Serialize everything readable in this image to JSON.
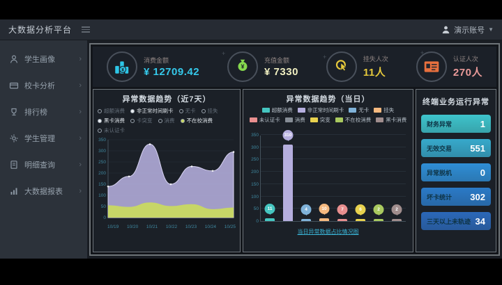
{
  "header": {
    "title": "大数据分析平台",
    "user_name": "演示账号"
  },
  "sidebar": {
    "items": [
      {
        "label": "学生画像",
        "icon": "student-icon"
      },
      {
        "label": "校卡分析",
        "icon": "card-icon"
      },
      {
        "label": "排行榜",
        "icon": "ranking-icon"
      },
      {
        "label": "学生管理",
        "icon": "manage-icon"
      },
      {
        "label": "明细查询",
        "icon": "query-icon"
      },
      {
        "label": "大数据报表",
        "icon": "report-icon"
      }
    ]
  },
  "kpis": [
    {
      "label": "消费金额",
      "value": "¥ 12709.42",
      "icon": "consume-icon",
      "icon_color": "#2ec7e8",
      "value_color": "#35c8ea"
    },
    {
      "label": "充值金额",
      "value": "¥ 7330",
      "icon": "recharge-icon",
      "icon_color": "#86d94e",
      "value_color": "#efeec0"
    },
    {
      "label": "挂失人次",
      "value": "11人",
      "icon": "loss-icon",
      "icon_color": "#e6c93c",
      "value_color": "#e6c93c"
    },
    {
      "label": "认证人次",
      "value": "270人",
      "icon": "auth-icon",
      "icon_color": "#e8703e",
      "value_color": "#ea9a99"
    }
  ],
  "chart_data": [
    {
      "type": "area",
      "title": "异常数据趋势（近7天）",
      "x": [
        "10/19",
        "10/20",
        "10/21",
        "10/22",
        "10/23",
        "10/24",
        "10/25"
      ],
      "ylim": [
        0,
        350
      ],
      "yticks": [
        0,
        50,
        100,
        150,
        200,
        250,
        300,
        350
      ],
      "grid": true,
      "legend_position": "top",
      "legend": [
        {
          "label": "超额消费",
          "selected": false
        },
        {
          "label": "非正常时间刷卡",
          "selected": true
        },
        {
          "label": "无卡",
          "selected": false
        },
        {
          "label": "挂失",
          "selected": false
        },
        {
          "label": "黑卡消费",
          "selected": true
        },
        {
          "label": "卡突变",
          "selected": false
        },
        {
          "label": "消费",
          "selected": false
        },
        {
          "label": "不在校消费",
          "selected": true,
          "dot_color": "#c9d962"
        },
        {
          "label": "未认证卡",
          "selected": false
        }
      ],
      "series": [
        {
          "name": "非正常时间刷卡",
          "color": "#b5aede",
          "values": [
            140,
            185,
            330,
            150,
            230,
            210,
            295
          ]
        },
        {
          "name": "不在校消费",
          "color": "#c9d962",
          "values": [
            55,
            48,
            68,
            52,
            60,
            38,
            45
          ]
        }
      ]
    },
    {
      "type": "bar",
      "title": "异常数据趋势（当日）",
      "ylim": [
        0,
        350
      ],
      "yticks": [
        0,
        50,
        100,
        150,
        200,
        250,
        300,
        350
      ],
      "grid": true,
      "legend_position": "top",
      "legend": [
        {
          "label": "超额消费",
          "color": "#45c5c0"
        },
        {
          "label": "非正常时间刷卡",
          "color": "#b5aede"
        },
        {
          "label": "无卡",
          "color": "#7fb2d9"
        },
        {
          "label": "挂失",
          "color": "#f5b97f"
        },
        {
          "label": "未认证卡",
          "color": "#e98f8f"
        },
        {
          "label": "消费",
          "color": "#868d96"
        },
        {
          "label": "突变",
          "color": "#e8d24e"
        },
        {
          "label": "不在校消费",
          "color": "#a9c95f"
        },
        {
          "label": "黑卡消费",
          "color": "#a08d8d"
        }
      ],
      "categories": [
        "超额消费",
        "非正常时间刷卡",
        "无卡",
        "挂失",
        "未认证卡",
        "突变",
        "不在校消费",
        "黑卡消费"
      ],
      "bars": [
        {
          "name": "超额消费",
          "value": 11,
          "color": "#45c5c0"
        },
        {
          "name": "非正常时间刷卡",
          "value": 310,
          "color": "#b5aede"
        },
        {
          "name": "无卡",
          "value": 4,
          "color": "#7fb2d9"
        },
        {
          "name": "挂失",
          "value": 10,
          "color": "#f5b97f"
        },
        {
          "name": "未认证卡",
          "value": 7,
          "color": "#e98f8f"
        },
        {
          "name": "突变",
          "value": 6,
          "color": "#e8d24e"
        },
        {
          "name": "不在校消费",
          "value": 2,
          "color": "#a9c95f"
        },
        {
          "name": "黑卡消费",
          "value": 2,
          "color": "#a08d8d"
        }
      ],
      "footer_link": "当日异常数据占比情况图"
    },
    {
      "type": "table",
      "title": "终端业务运行异常",
      "rows": [
        {
          "label": "财务异常",
          "value": 1,
          "color": "#3ec4cc"
        },
        {
          "label": "无效交易",
          "value": 551,
          "color": "#37a9cb"
        },
        {
          "label": "异常脱机",
          "value": 0,
          "color": "#2f8ed6"
        },
        {
          "label": "坏卡统计",
          "value": 302,
          "color": "#2b7ac7"
        },
        {
          "label": "三天以上未轨迹",
          "value": 34,
          "color": "#2b68b8"
        }
      ]
    }
  ]
}
